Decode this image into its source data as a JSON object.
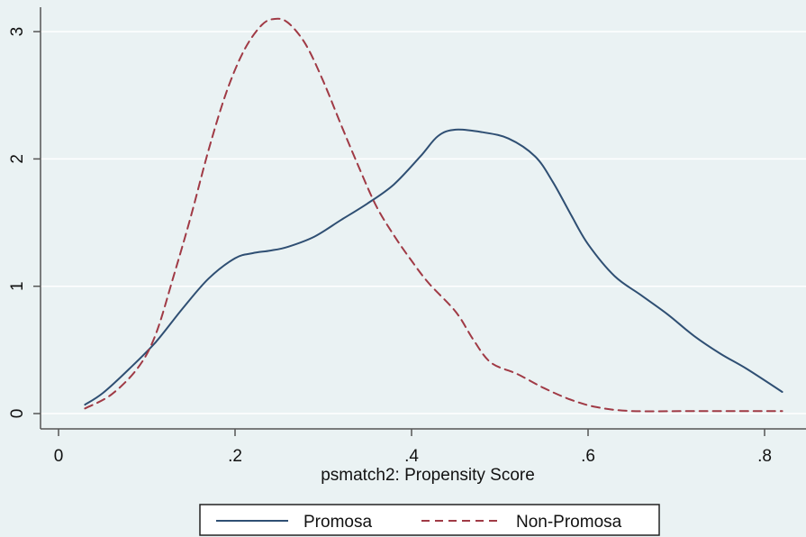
{
  "chart_data": {
    "type": "line",
    "xlabel": "psmatch2: Propensity Score",
    "ylabel": "",
    "xlim": [
      0,
      0.83
    ],
    "ylim": [
      0,
      3.2
    ],
    "xticks": [
      {
        "value": 0,
        "label": "0"
      },
      {
        "value": 0.2,
        "label": ".2"
      },
      {
        "value": 0.4,
        "label": ".4"
      },
      {
        "value": 0.6,
        "label": ".6"
      },
      {
        "value": 0.8,
        "label": ".8"
      }
    ],
    "yticks": [
      {
        "value": 0,
        "label": "0"
      },
      {
        "value": 1,
        "label": "1"
      },
      {
        "value": 2,
        "label": "2"
      },
      {
        "value": 3,
        "label": "3"
      }
    ],
    "grid": true,
    "legend": "bottom",
    "series": [
      {
        "name": "Promosa",
        "color": "#2f4f73",
        "dash": "solid",
        "points": [
          [
            0.03,
            0.07
          ],
          [
            0.05,
            0.16
          ],
          [
            0.08,
            0.35
          ],
          [
            0.11,
            0.56
          ],
          [
            0.14,
            0.82
          ],
          [
            0.17,
            1.06
          ],
          [
            0.2,
            1.22
          ],
          [
            0.22,
            1.26
          ],
          [
            0.24,
            1.28
          ],
          [
            0.26,
            1.31
          ],
          [
            0.29,
            1.39
          ],
          [
            0.32,
            1.52
          ],
          [
            0.35,
            1.65
          ],
          [
            0.38,
            1.8
          ],
          [
            0.41,
            2.02
          ],
          [
            0.43,
            2.18
          ],
          [
            0.45,
            2.23
          ],
          [
            0.48,
            2.21
          ],
          [
            0.51,
            2.16
          ],
          [
            0.54,
            2.02
          ],
          [
            0.56,
            1.82
          ],
          [
            0.58,
            1.57
          ],
          [
            0.6,
            1.33
          ],
          [
            0.63,
            1.08
          ],
          [
            0.66,
            0.93
          ],
          [
            0.69,
            0.78
          ],
          [
            0.72,
            0.61
          ],
          [
            0.75,
            0.47
          ],
          [
            0.78,
            0.35
          ],
          [
            0.82,
            0.17
          ]
        ]
      },
      {
        "name": "Non-Promosa",
        "color": "#a03a45",
        "dash": "dashed",
        "points": [
          [
            0.03,
            0.04
          ],
          [
            0.06,
            0.15
          ],
          [
            0.09,
            0.36
          ],
          [
            0.11,
            0.62
          ],
          [
            0.13,
            1.07
          ],
          [
            0.15,
            1.55
          ],
          [
            0.17,
            2.07
          ],
          [
            0.19,
            2.52
          ],
          [
            0.21,
            2.85
          ],
          [
            0.23,
            3.05
          ],
          [
            0.245,
            3.1
          ],
          [
            0.26,
            3.07
          ],
          [
            0.28,
            2.9
          ],
          [
            0.3,
            2.61
          ],
          [
            0.32,
            2.27
          ],
          [
            0.34,
            1.94
          ],
          [
            0.36,
            1.63
          ],
          [
            0.38,
            1.4
          ],
          [
            0.4,
            1.2
          ],
          [
            0.42,
            1.02
          ],
          [
            0.45,
            0.8
          ],
          [
            0.47,
            0.58
          ],
          [
            0.49,
            0.4
          ],
          [
            0.52,
            0.31
          ],
          [
            0.55,
            0.2
          ],
          [
            0.58,
            0.11
          ],
          [
            0.61,
            0.05
          ],
          [
            0.65,
            0.02
          ],
          [
            0.72,
            0.02
          ],
          [
            0.82,
            0.02
          ]
        ]
      }
    ]
  }
}
